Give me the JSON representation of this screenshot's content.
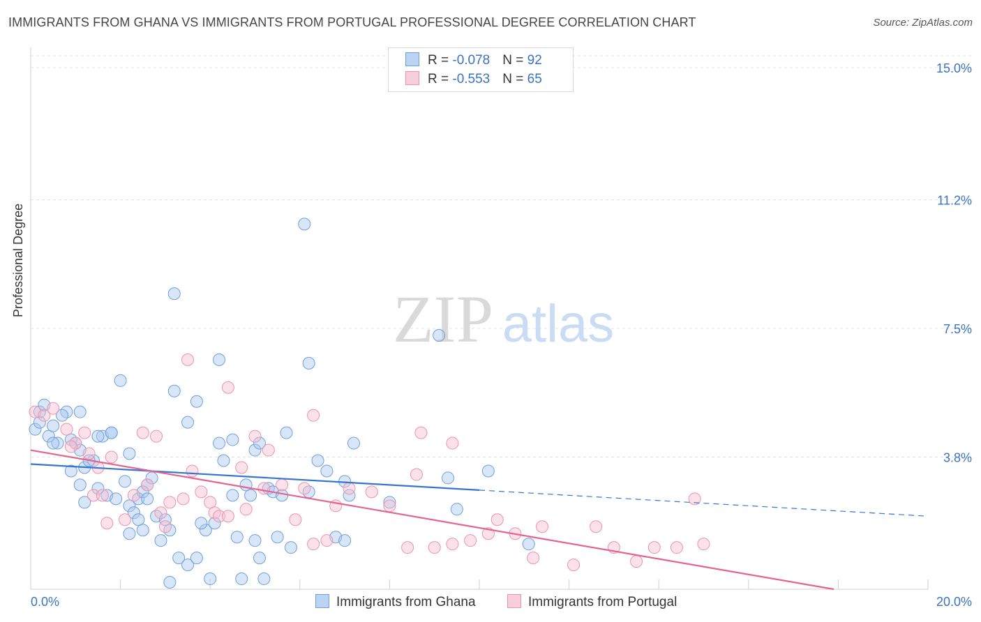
{
  "title": "IMMIGRANTS FROM GHANA VS IMMIGRANTS FROM PORTUGAL PROFESSIONAL DEGREE CORRELATION CHART",
  "source": "Source: ZipAtlas.com",
  "watermark": {
    "zip": "ZIP",
    "atlas": "atlas"
  },
  "legend": {
    "rows": [
      {
        "r_label": "R = ",
        "r_value": "-0.078",
        "n_label": "N = ",
        "n_value": "92"
      },
      {
        "r_label": "R = ",
        "r_value": "-0.553",
        "n_label": "N = ",
        "n_value": "65"
      }
    ]
  },
  "colors": {
    "ghana_fill": "#a9c8f0",
    "ghana_stroke": "#6e9fdc",
    "ghana_line": "#3475d1",
    "portugal_fill": "#f7bfd0",
    "portugal_stroke": "#ec92ae",
    "portugal_line": "#e5638f",
    "tick_label": "#3a72c2",
    "grid": "#e3e3e3"
  },
  "chart_data": {
    "type": "scatter",
    "title": "IMMIGRANTS FROM GHANA VS IMMIGRANTS FROM PORTUGAL PROFESSIONAL DEGREE CORRELATION CHART",
    "ylabel": "Professional Degree",
    "xlim": [
      0,
      20
    ],
    "ylim": [
      0,
      15
    ],
    "x_tick_labels": [
      "0.0%",
      "20.0%"
    ],
    "y_ticks": [
      3.8,
      7.5,
      11.2,
      15.0
    ],
    "y_tick_labels": [
      "3.8%",
      "7.5%",
      "11.2%",
      "15.0%"
    ],
    "grid": true,
    "legend_position": "top-center",
    "series": [
      {
        "name": "Immigrants from Ghana",
        "color": "#a9c8f0",
        "trend": {
          "x": [
            0,
            10.0
          ],
          "y": [
            3.6,
            2.85
          ],
          "dashed_to": [
            20,
            2.1
          ]
        },
        "points": [
          [
            0.1,
            4.6
          ],
          [
            0.2,
            4.8
          ],
          [
            0.2,
            5.1
          ],
          [
            0.3,
            5.3
          ],
          [
            0.4,
            4.4
          ],
          [
            0.5,
            4.7
          ],
          [
            0.6,
            4.2
          ],
          [
            0.5,
            4.2
          ],
          [
            0.8,
            5.1
          ],
          [
            0.9,
            4.3
          ],
          [
            0.7,
            5.0
          ],
          [
            1.0,
            4.2
          ],
          [
            1.1,
            4.0
          ],
          [
            1.2,
            3.5
          ],
          [
            0.9,
            3.4
          ],
          [
            1.4,
            3.7
          ],
          [
            1.3,
            3.7
          ],
          [
            1.6,
            4.4
          ],
          [
            1.1,
            3.0
          ],
          [
            1.5,
            2.9
          ],
          [
            1.8,
            4.5
          ],
          [
            1.7,
            2.7
          ],
          [
            2.1,
            3.1
          ],
          [
            1.9,
            2.6
          ],
          [
            2.2,
            2.4
          ],
          [
            2.3,
            2.2
          ],
          [
            2.4,
            2.6
          ],
          [
            2.6,
            3.0
          ],
          [
            1.2,
            2.5
          ],
          [
            2.5,
            2.8
          ],
          [
            2.0,
            6.0
          ],
          [
            1.1,
            5.1
          ],
          [
            1.8,
            4.5
          ],
          [
            1.5,
            4.4
          ],
          [
            2.2,
            3.9
          ],
          [
            2.6,
            2.6
          ],
          [
            2.7,
            3.2
          ],
          [
            2.4,
            2.0
          ],
          [
            2.8,
            2.1
          ],
          [
            3.0,
            2.0
          ],
          [
            3.1,
            1.7
          ],
          [
            2.5,
            1.7
          ],
          [
            2.9,
            1.4
          ],
          [
            2.2,
            1.6
          ],
          [
            3.3,
            0.9
          ],
          [
            3.5,
            0.7
          ],
          [
            3.7,
            0.9
          ],
          [
            3.9,
            1.7
          ],
          [
            3.8,
            1.9
          ],
          [
            4.0,
            0.3
          ],
          [
            3.1,
            0.2
          ],
          [
            3.2,
            5.7
          ],
          [
            3.5,
            4.8
          ],
          [
            3.7,
            5.4
          ],
          [
            4.2,
            4.2
          ],
          [
            4.5,
            4.3
          ],
          [
            4.3,
            3.7
          ],
          [
            4.1,
            1.9
          ],
          [
            4.5,
            2.7
          ],
          [
            4.6,
            1.5
          ],
          [
            4.7,
            0.3
          ],
          [
            4.8,
            3.0
          ],
          [
            4.9,
            2.7
          ],
          [
            5.0,
            1.4
          ],
          [
            5.1,
            0.9
          ],
          [
            5.2,
            0.3
          ],
          [
            5.0,
            4.0
          ],
          [
            5.1,
            4.2
          ],
          [
            5.3,
            2.9
          ],
          [
            5.4,
            2.8
          ],
          [
            5.5,
            1.5
          ],
          [
            5.6,
            2.7
          ],
          [
            5.8,
            1.2
          ],
          [
            5.7,
            4.5
          ],
          [
            6.2,
            2.8
          ],
          [
            6.4,
            3.7
          ],
          [
            6.6,
            3.4
          ],
          [
            6.8,
            1.5
          ],
          [
            7.0,
            3.1
          ],
          [
            7.1,
            2.7
          ],
          [
            7.2,
            4.2
          ],
          [
            6.1,
            10.5
          ],
          [
            3.2,
            8.5
          ],
          [
            6.2,
            6.5
          ],
          [
            4.2,
            6.6
          ],
          [
            8.0,
            2.5
          ],
          [
            9.3,
            3.2
          ],
          [
            9.5,
            2.3
          ],
          [
            7.0,
            1.4
          ],
          [
            10.2,
            3.4
          ],
          [
            11.1,
            1.3
          ],
          [
            9.1,
            7.3
          ]
        ]
      },
      {
        "name": "Immigrants from Portugal",
        "color": "#f7bfd0",
        "trend": {
          "x": [
            0,
            17.9
          ],
          "y": [
            4.0,
            0.0
          ]
        },
        "points": [
          [
            0.1,
            5.1
          ],
          [
            0.3,
            5.0
          ],
          [
            0.5,
            5.2
          ],
          [
            0.8,
            4.6
          ],
          [
            1.0,
            4.2
          ],
          [
            0.9,
            4.1
          ],
          [
            1.2,
            4.5
          ],
          [
            1.3,
            3.9
          ],
          [
            1.5,
            3.5
          ],
          [
            1.4,
            2.7
          ],
          [
            1.6,
            2.7
          ],
          [
            1.8,
            3.8
          ],
          [
            1.7,
            1.9
          ],
          [
            2.1,
            2.0
          ],
          [
            2.3,
            2.7
          ],
          [
            2.5,
            4.5
          ],
          [
            2.6,
            3.0
          ],
          [
            2.8,
            4.4
          ],
          [
            2.9,
            2.2
          ],
          [
            3.0,
            1.8
          ],
          [
            3.1,
            2.5
          ],
          [
            3.4,
            2.6
          ],
          [
            3.6,
            3.4
          ],
          [
            3.8,
            2.8
          ],
          [
            4.0,
            2.5
          ],
          [
            4.1,
            2.2
          ],
          [
            4.2,
            2.1
          ],
          [
            4.4,
            2.1
          ],
          [
            4.8,
            2.3
          ],
          [
            4.7,
            3.5
          ],
          [
            5.0,
            4.4
          ],
          [
            5.2,
            2.9
          ],
          [
            5.3,
            4.0
          ],
          [
            5.6,
            3.0
          ],
          [
            5.9,
            2.0
          ],
          [
            6.1,
            2.9
          ],
          [
            6.3,
            1.3
          ],
          [
            6.6,
            1.4
          ],
          [
            6.8,
            2.4
          ],
          [
            7.1,
            2.9
          ],
          [
            7.6,
            2.8
          ],
          [
            8.0,
            2.4
          ],
          [
            8.4,
            1.2
          ],
          [
            8.6,
            3.3
          ],
          [
            9.0,
            1.2
          ],
          [
            9.4,
            1.3
          ],
          [
            9.8,
            1.4
          ],
          [
            10.2,
            1.6
          ],
          [
            10.4,
            2.0
          ],
          [
            10.8,
            1.6
          ],
          [
            11.2,
            0.9
          ],
          [
            11.4,
            1.8
          ],
          [
            12.1,
            0.7
          ],
          [
            12.6,
            1.8
          ],
          [
            13.0,
            1.2
          ],
          [
            13.5,
            0.8
          ],
          [
            13.9,
            1.2
          ],
          [
            14.4,
            1.2
          ],
          [
            14.8,
            2.6
          ],
          [
            15.0,
            1.3
          ],
          [
            3.5,
            6.6
          ],
          [
            4.4,
            5.8
          ],
          [
            6.3,
            5.0
          ],
          [
            8.7,
            4.5
          ],
          [
            9.4,
            4.2
          ]
        ]
      }
    ]
  }
}
